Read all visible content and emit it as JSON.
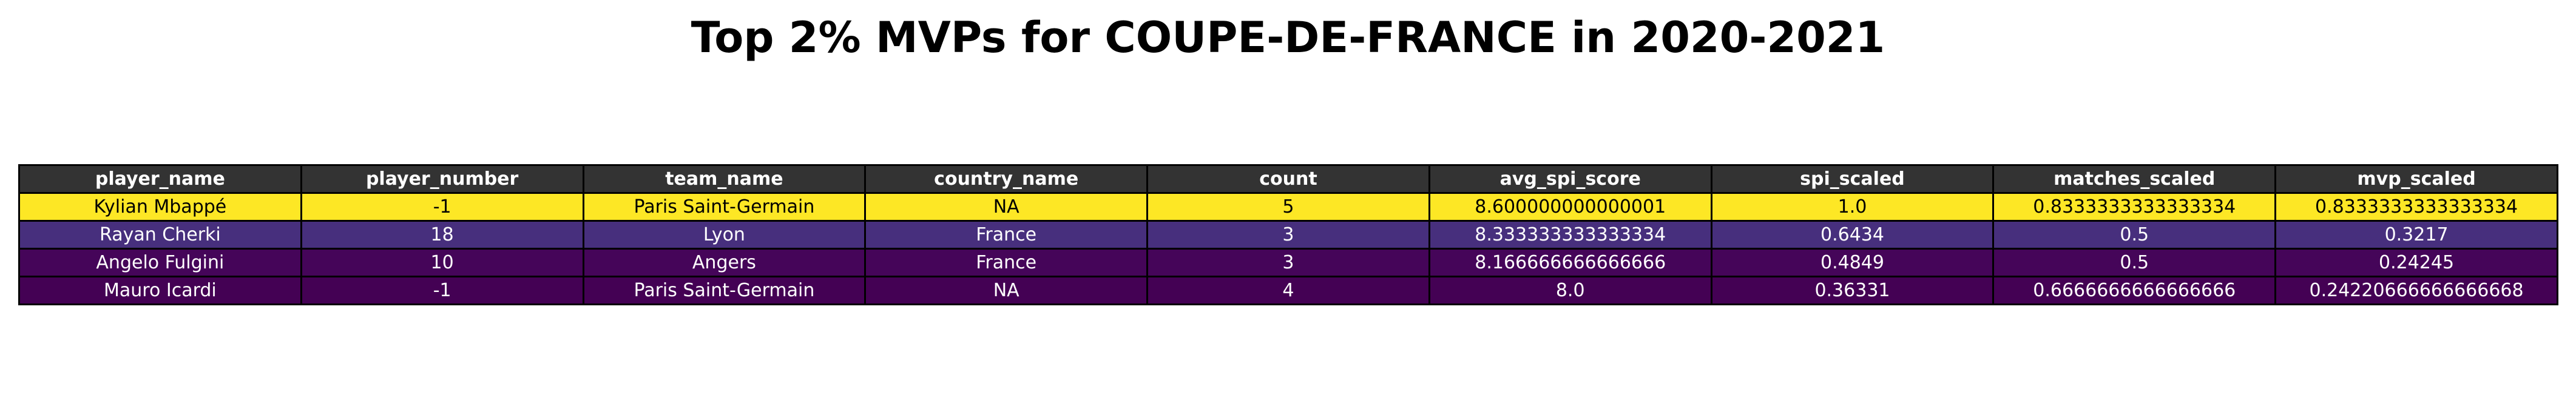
{
  "chart_data": {
    "type": "table",
    "title": "Top 2% MVPs for COUPE-DE-FRANCE in 2020-2021",
    "columns": [
      "player_name",
      "player_number",
      "team_name",
      "country_name",
      "count",
      "avg_spi_score",
      "spi_scaled",
      "matches_scaled",
      "mvp_scaled"
    ],
    "header_color": "#333333",
    "header_text_color": "#ffffff",
    "rows": [
      {
        "cells": [
          "Kylian Mbappé",
          "-1",
          "Paris Saint-Germain",
          "NA",
          "5",
          "8.600000000000001",
          "1.0",
          "0.8333333333333334",
          "0.8333333333333334"
        ],
        "color": "#fde725",
        "text_color": "#000000"
      },
      {
        "cells": [
          "Rayan Cherki",
          "18",
          "Lyon",
          "France",
          "3",
          "8.333333333333334",
          "0.6434",
          "0.5",
          "0.3217"
        ],
        "color": "#472f7d",
        "text_color": "#ffffff"
      },
      {
        "cells": [
          "Angelo Fulgini",
          "10",
          "Angers",
          "France",
          "3",
          "8.166666666666666",
          "0.4849",
          "0.5",
          "0.24245"
        ],
        "color": "#450559",
        "text_color": "#ffffff"
      },
      {
        "cells": [
          "Mauro Icardi",
          "-1",
          "Paris Saint-Germain",
          "NA",
          "4",
          "8.0",
          "0.36331",
          "0.6666666666666666",
          "0.24220666666666668"
        ],
        "color": "#440154",
        "text_color": "#ffffff"
      }
    ]
  }
}
